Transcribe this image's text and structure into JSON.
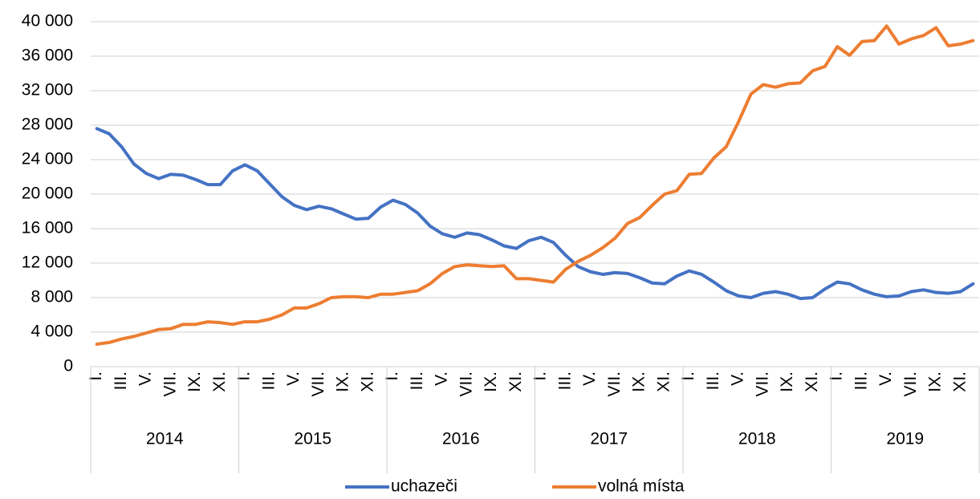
{
  "chart_data": {
    "type": "line",
    "categories": [
      "I.",
      null,
      "III.",
      null,
      "V.",
      null,
      "VII.",
      null,
      "IX.",
      null,
      "XI.",
      null,
      "I.",
      null,
      "III.",
      null,
      "V.",
      null,
      "VII.",
      null,
      "IX.",
      null,
      "XI.",
      null,
      "I.",
      null,
      "III.",
      null,
      "V.",
      null,
      "VII.",
      null,
      "IX.",
      null,
      "XI.",
      null,
      "I.",
      null,
      "III.",
      null,
      "V.",
      null,
      "VII.",
      null,
      "IX.",
      null,
      "XI.",
      null,
      "I.",
      null,
      "III.",
      null,
      "V.",
      null,
      "VII.",
      null,
      "IX.",
      null,
      "XI.",
      null,
      "I.",
      null,
      "III.",
      null,
      "V.",
      null,
      "VII.",
      null,
      "IX.",
      null,
      "XI.",
      null
    ],
    "year_groups": [
      "2014",
      "2015",
      "2016",
      "2017",
      "2018",
      "2019"
    ],
    "series": [
      {
        "name": "uchazeči",
        "color": "#4472c4",
        "values": [
          27600,
          27000,
          25500,
          23500,
          22400,
          21800,
          22300,
          22200,
          21700,
          21100,
          21100,
          22700,
          23400,
          22700,
          21200,
          19700,
          18700,
          18200,
          18600,
          18300,
          17700,
          17100,
          17200,
          18500,
          19300,
          18800,
          17800,
          16300,
          15400,
          15000,
          15500,
          15300,
          14700,
          14000,
          13700,
          14600,
          15000,
          14400,
          12900,
          11600,
          11000,
          10700,
          10900,
          10800,
          10300,
          9700,
          9600,
          10500,
          11100,
          10700,
          9800,
          8800,
          8200,
          8000,
          8500,
          8700,
          8400,
          7900,
          8000,
          9000,
          9800,
          9600,
          8900,
          8400,
          8100,
          8200,
          8700,
          8900,
          8600,
          8500,
          8700,
          9600
        ]
      },
      {
        "name": "volná místa",
        "color": "#ed7d31",
        "values": [
          2600,
          2800,
          3200,
          3500,
          3900,
          4300,
          4400,
          4900,
          4900,
          5200,
          5100,
          4900,
          5200,
          5200,
          5500,
          6000,
          6800,
          6800,
          7300,
          8000,
          8100,
          8100,
          8000,
          8400,
          8400,
          8600,
          8800,
          9600,
          10800,
          11600,
          11800,
          11700,
          11600,
          11700,
          10200,
          10200,
          10000,
          9800,
          11300,
          12200,
          12900,
          13800,
          14900,
          16600,
          17300,
          18700,
          20000,
          20400,
          22300,
          22400,
          24200,
          25500,
          28400,
          31600,
          32700,
          32400,
          32800,
          32900,
          34300,
          34800,
          37100,
          36100,
          37700,
          37800,
          39500,
          37400,
          38000,
          38400,
          39300,
          37200,
          37400,
          37800
        ]
      }
    ],
    "ylim": [
      0,
      40000
    ],
    "yticks": [
      0,
      {
        "value": 4000,
        "label": "4 000"
      },
      {
        "value": 8000,
        "label": "8 000"
      },
      {
        "value": 12000,
        "label": "12 000"
      },
      {
        "value": 16000,
        "label": "16 000"
      },
      {
        "value": 20000,
        "label": "20 000"
      },
      {
        "value": 24000,
        "label": "24 000"
      },
      {
        "value": 28000,
        "label": "28 000"
      },
      {
        "value": 32000,
        "label": "32 000"
      },
      {
        "value": 36000,
        "label": "36 000"
      },
      {
        "value": 40000,
        "label": "40 000"
      }
    ],
    "grid": true,
    "legend": "bottom"
  }
}
